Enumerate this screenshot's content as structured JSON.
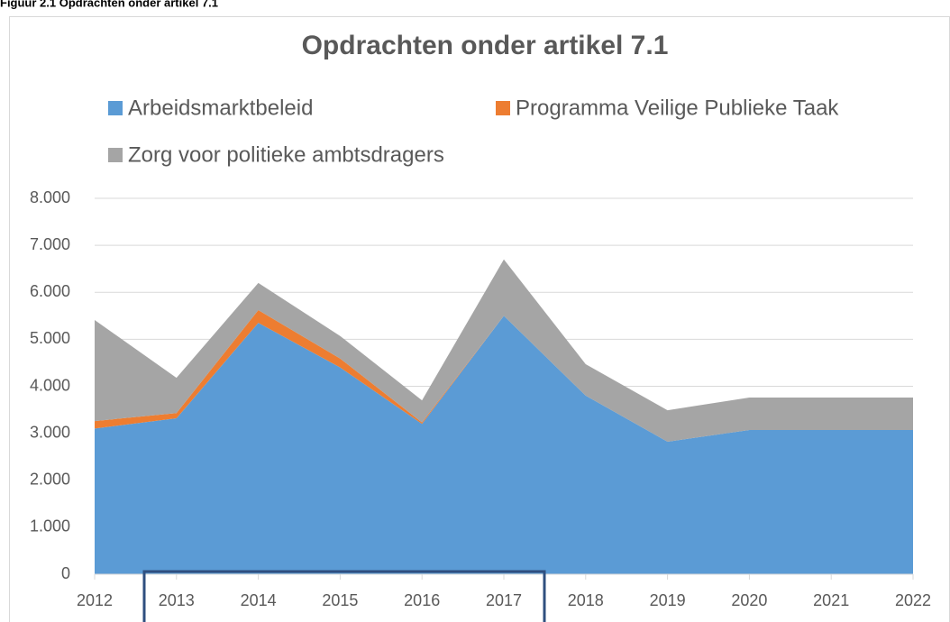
{
  "caption": "Figuur 2.1 Opdrachten onder artikel 7.1",
  "chart_data": {
    "type": "stacked-area",
    "title": "Opdrachten onder artikel 7.1",
    "categories": [
      "2012",
      "2013",
      "2014",
      "2015",
      "2016",
      "2017",
      "2018",
      "2019",
      "2020",
      "2021",
      "2022"
    ],
    "series": [
      {
        "name": "Arbeidsmarktbeleid",
        "color": "#5b9bd5",
        "values": [
          3100,
          3320,
          5350,
          4400,
          3200,
          5500,
          3800,
          2820,
          3070,
          3070,
          3070
        ]
      },
      {
        "name": "Programma Veilige Publieke Taak",
        "color": "#ed7d31",
        "values": [
          160,
          110,
          270,
          190,
          30,
          0,
          0,
          0,
          0,
          0,
          0
        ]
      },
      {
        "name": "Zorg voor politieke ambtsdragers",
        "color": "#a5a5a5",
        "values": [
          2150,
          750,
          580,
          480,
          470,
          1200,
          670,
          670,
          690,
          690,
          690
        ]
      }
    ],
    "ylim": [
      0,
      8000
    ],
    "yticks": [
      0,
      {
        "value": 1000,
        "label": "1.000"
      },
      {
        "value": 2000,
        "label": "2.000"
      },
      {
        "value": 3000,
        "label": "3.000"
      },
      {
        "value": 4000,
        "label": "4.000"
      },
      {
        "value": 5000,
        "label": "5.000"
      },
      {
        "value": 6000,
        "label": "6.000"
      },
      {
        "value": 7000,
        "label": "7.000"
      },
      {
        "value": 8000,
        "label": "8.000"
      }
    ],
    "grid": true,
    "legend": "top"
  }
}
